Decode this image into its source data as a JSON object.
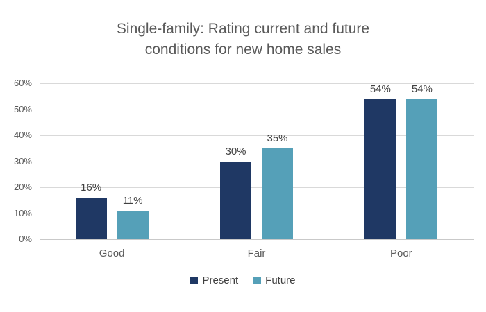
{
  "title": {
    "line1": "Single-family: Rating current and future",
    "line2": "conditions for new home sales"
  },
  "legend": {
    "items": [
      {
        "label": "Present",
        "color": "#1F3864"
      },
      {
        "label": "Future",
        "color": "#55A0B8"
      }
    ]
  },
  "chart_data": {
    "type": "bar",
    "title": "Single-family: Rating current and future conditions for new home sales",
    "categories": [
      "Good",
      "Fair",
      "Poor"
    ],
    "series": [
      {
        "name": "Present",
        "color": "#1F3864",
        "values": [
          16,
          30,
          54
        ],
        "labels": [
          "16%",
          "30%",
          "54%"
        ]
      },
      {
        "name": "Future",
        "color": "#55A0B8",
        "values": [
          11,
          35,
          54
        ],
        "labels": [
          "11%",
          "35%",
          "54%"
        ]
      }
    ],
    "xlabel": "",
    "ylabel": "",
    "ylim": [
      0,
      60
    ],
    "ytick_step": 10,
    "ytick_labels": [
      "0%",
      "10%",
      "20%",
      "30%",
      "40%",
      "50%",
      "60%"
    ],
    "grid": true,
    "legend_position": "bottom"
  },
  "colors": {
    "background": "#FFFFFF",
    "title_text": "#595959",
    "axis_text": "#595959",
    "value_label_text": "#404040",
    "gridline": "#D9D9D9"
  }
}
